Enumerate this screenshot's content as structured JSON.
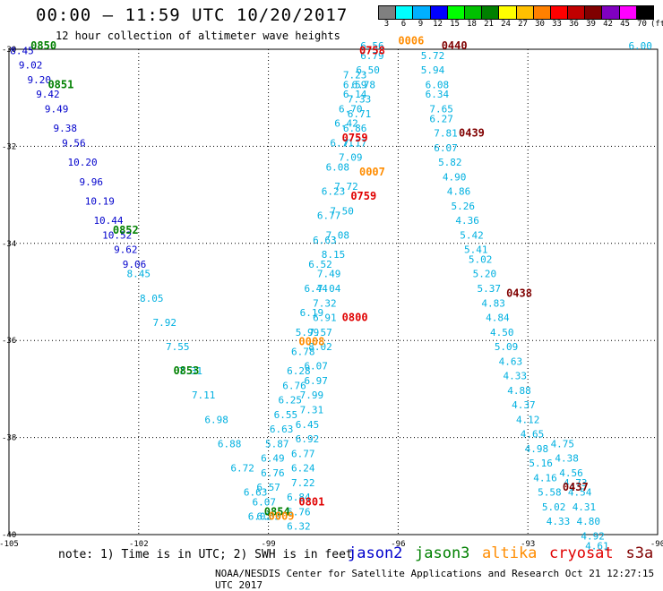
{
  "header": {
    "title": "00:00 – 11:59 UTC 10/20/2017",
    "subtitle": "12 hour collection of altimeter wave heights"
  },
  "colorbar": {
    "labels": [
      "3",
      "6",
      "9",
      "12",
      "15",
      "18",
      "21",
      "24",
      "27",
      "30",
      "33",
      "36",
      "39",
      "42",
      "45",
      "70",
      "(ft)"
    ],
    "colors": [
      "#808080",
      "#00ffff",
      "#00b0ff",
      "#0000ff",
      "#00ff00",
      "#00c000",
      "#008000",
      "#ffff00",
      "#ffc000",
      "#ff8000",
      "#ff0000",
      "#c00000",
      "#800000",
      "#8000c0",
      "#ff00ff",
      "#000000"
    ]
  },
  "footer": {
    "note": "note: 1) Time is in UTC; 2) SWH is in feet",
    "credit": "NOAA/NESDIS Center for Satellite Applications and Research    Oct 21 12:27:15 UTC 2017",
    "satellites": [
      {
        "name": "jason2",
        "color": "#0000cc"
      },
      {
        "name": "jason3",
        "color": "#008000"
      },
      {
        "name": "altika",
        "color": "#ff8c00"
      },
      {
        "name": "cryosat",
        "color": "#e00000"
      },
      {
        "name": "s3a",
        "color": "#800000"
      }
    ]
  },
  "chart_data": {
    "type": "scatter",
    "xlim": [
      -105,
      -90
    ],
    "ylim": [
      -40,
      -30
    ],
    "xticks": [
      "-105",
      "-102",
      "-99",
      "-96",
      "-93",
      "-90"
    ],
    "yticks": [
      "-30",
      "-32",
      "-34",
      "-36",
      "-38",
      "-40"
    ],
    "grid": true,
    "tracks": [
      {
        "sat": "jason2",
        "color": "#0000cc",
        "points": [
          {
            "x": -104.7,
            "y": -30.1,
            "v": "8.45"
          },
          {
            "x": -104.5,
            "y": -30.4,
            "v": "9.02"
          },
          {
            "x": -104.3,
            "y": -30.7,
            "v": "9.20"
          },
          {
            "x": -104.1,
            "y": -31.0,
            "v": "9.42"
          },
          {
            "x": -103.9,
            "y": -31.3,
            "v": "9.49"
          },
          {
            "x": -103.7,
            "y": -31.7,
            "v": "9.38"
          },
          {
            "x": -103.5,
            "y": -32.0,
            "v": "9.56"
          },
          {
            "x": -103.3,
            "y": -32.4,
            "v": "10.20"
          },
          {
            "x": -103.1,
            "y": -32.8,
            "v": "9.96"
          },
          {
            "x": -102.9,
            "y": -33.2,
            "v": "10.19"
          },
          {
            "x": -102.7,
            "y": -33.6,
            "v": "10.44"
          },
          {
            "x": -102.5,
            "y": -33.9,
            "v": "10.52"
          },
          {
            "x": -102.3,
            "y": -34.2,
            "v": "9.62"
          },
          {
            "x": -102.1,
            "y": -34.5,
            "v": "9.06"
          }
        ]
      },
      {
        "sat": "jason2",
        "color": "#00b0e0",
        "points": [
          {
            "x": -102.0,
            "y": -34.7,
            "v": "8.45"
          },
          {
            "x": -101.7,
            "y": -35.2,
            "v": "8.05"
          },
          {
            "x": -101.4,
            "y": -35.7,
            "v": "7.92"
          },
          {
            "x": -101.1,
            "y": -36.2,
            "v": "7.55"
          },
          {
            "x": -100.8,
            "y": -36.7,
            "v": "7.31"
          },
          {
            "x": -100.5,
            "y": -37.2,
            "v": "7.11"
          },
          {
            "x": -100.2,
            "y": -37.7,
            "v": "6.98"
          },
          {
            "x": -99.9,
            "y": -38.2,
            "v": "6.88"
          },
          {
            "x": -99.6,
            "y": -38.7,
            "v": "6.72"
          },
          {
            "x": -99.3,
            "y": -39.2,
            "v": "6.63"
          },
          {
            "x": -99.0,
            "y": -39.7,
            "v": "6.53"
          }
        ]
      },
      {
        "sat": "altika",
        "color": "#00b0e0",
        "points": [
          {
            "x": -97.0,
            "y": -30.6,
            "v": "7.23"
          },
          {
            "x": -97.0,
            "y": -30.8,
            "v": "6.59"
          },
          {
            "x": -97.0,
            "y": -31.0,
            "v": "6.14"
          },
          {
            "x": -97.1,
            "y": -31.3,
            "v": "6.70"
          },
          {
            "x": -97.2,
            "y": -31.6,
            "v": "6.42"
          },
          {
            "x": -97.3,
            "y": -32.0,
            "v": "6.71"
          },
          {
            "x": -97.4,
            "y": -32.5,
            "v": "6.08"
          },
          {
            "x": -97.5,
            "y": -33.0,
            "v": "6.23"
          },
          {
            "x": -97.6,
            "y": -33.5,
            "v": "6.77"
          },
          {
            "x": -97.7,
            "y": -34.0,
            "v": "6.63"
          },
          {
            "x": -97.8,
            "y": -34.5,
            "v": "6.52"
          },
          {
            "x": -97.9,
            "y": -35.0,
            "v": "6.44"
          },
          {
            "x": -98.0,
            "y": -35.5,
            "v": "6.19"
          },
          {
            "x": -98.1,
            "y": -35.9,
            "v": "5.99"
          },
          {
            "x": -98.2,
            "y": -36.3,
            "v": "6.78"
          },
          {
            "x": -98.3,
            "y": -36.7,
            "v": "6.28"
          },
          {
            "x": -98.4,
            "y": -37.0,
            "v": "6.76"
          },
          {
            "x": -98.5,
            "y": -37.3,
            "v": "6.25"
          },
          {
            "x": -98.6,
            "y": -37.6,
            "v": "6.55"
          },
          {
            "x": -98.7,
            "y": -37.9,
            "v": "6.63"
          },
          {
            "x": -98.8,
            "y": -38.2,
            "v": "5.87"
          },
          {
            "x": -98.9,
            "y": -38.5,
            "v": "6.49"
          },
          {
            "x": -98.9,
            "y": -38.8,
            "v": "6.76"
          },
          {
            "x": -99.0,
            "y": -39.1,
            "v": "6.57"
          },
          {
            "x": -99.1,
            "y": -39.4,
            "v": "6.07"
          },
          {
            "x": -99.2,
            "y": -39.7,
            "v": "6.02"
          }
        ]
      },
      {
        "sat": "altika",
        "color": "#00b0e0",
        "points": [
          {
            "x": -96.6,
            "y": -30.0,
            "v": "6.56"
          },
          {
            "x": -96.6,
            "y": -30.2,
            "v": "6.79"
          },
          {
            "x": -96.7,
            "y": -30.5,
            "v": "6.50"
          },
          {
            "x": -96.8,
            "y": -30.8,
            "v": "6.78"
          },
          {
            "x": -96.9,
            "y": -31.1,
            "v": "7.33"
          },
          {
            "x": -96.9,
            "y": -31.4,
            "v": "6.71"
          },
          {
            "x": -97.0,
            "y": -31.7,
            "v": "6.86"
          },
          {
            "x": -97.0,
            "y": -32.0,
            "v": "7.17"
          },
          {
            "x": -97.1,
            "y": -32.3,
            "v": "7.09"
          },
          {
            "x": -97.2,
            "y": -32.9,
            "v": "7.72"
          },
          {
            "x": -97.3,
            "y": -33.4,
            "v": "7.50"
          },
          {
            "x": -97.4,
            "y": -33.9,
            "v": "7.08"
          },
          {
            "x": -97.5,
            "y": -34.3,
            "v": "8.15"
          },
          {
            "x": -97.6,
            "y": -34.7,
            "v": "7.49"
          },
          {
            "x": -97.6,
            "y": -35.0,
            "v": "7.04"
          },
          {
            "x": -97.7,
            "y": -35.3,
            "v": "7.32"
          },
          {
            "x": -97.7,
            "y": -35.6,
            "v": "6.91"
          },
          {
            "x": -97.8,
            "y": -35.9,
            "v": "7.57"
          },
          {
            "x": -97.8,
            "y": -36.2,
            "v": "8.02"
          },
          {
            "x": -97.9,
            "y": -36.6,
            "v": "6.07"
          },
          {
            "x": -97.9,
            "y": -36.9,
            "v": "6.97"
          },
          {
            "x": -98.0,
            "y": -37.2,
            "v": "7.99"
          },
          {
            "x": -98.0,
            "y": -37.5,
            "v": "7.31"
          },
          {
            "x": -98.1,
            "y": -37.8,
            "v": "6.45"
          },
          {
            "x": -98.1,
            "y": -38.1,
            "v": "6.92"
          },
          {
            "x": -98.2,
            "y": -38.4,
            "v": "6.77"
          },
          {
            "x": -98.2,
            "y": -38.7,
            "v": "6.24"
          },
          {
            "x": -98.2,
            "y": -39.0,
            "v": "7.22"
          },
          {
            "x": -98.3,
            "y": -39.3,
            "v": "6.84"
          },
          {
            "x": -98.3,
            "y": -39.6,
            "v": "6.76"
          },
          {
            "x": -98.3,
            "y": -39.9,
            "v": "6.32"
          }
        ]
      },
      {
        "sat": "cryosat",
        "color": "#00b0e0",
        "points": [
          {
            "x": -95.2,
            "y": -30.2,
            "v": "5.72"
          },
          {
            "x": -95.2,
            "y": -30.5,
            "v": "5.94"
          },
          {
            "x": -95.1,
            "y": -30.8,
            "v": "6.08"
          },
          {
            "x": -95.1,
            "y": -31.0,
            "v": "6.34"
          },
          {
            "x": -95.0,
            "y": -31.3,
            "v": "7.65"
          },
          {
            "x": -95.0,
            "y": -31.5,
            "v": "6.27"
          },
          {
            "x": -94.9,
            "y": -31.8,
            "v": "7.81"
          },
          {
            "x": -94.9,
            "y": -32.1,
            "v": "6.07"
          },
          {
            "x": -94.8,
            "y": -32.4,
            "v": "5.82"
          },
          {
            "x": -94.7,
            "y": -32.7,
            "v": "4.90"
          },
          {
            "x": -94.6,
            "y": -33.0,
            "v": "4.86"
          },
          {
            "x": -94.5,
            "y": -33.3,
            "v": "5.26"
          },
          {
            "x": -94.4,
            "y": -33.6,
            "v": "4.36"
          },
          {
            "x": -94.3,
            "y": -33.9,
            "v": "5.42"
          },
          {
            "x": -94.2,
            "y": -34.2,
            "v": "5.41"
          },
          {
            "x": -94.1,
            "y": -34.4,
            "v": "5.02"
          },
          {
            "x": -94.0,
            "y": -34.7,
            "v": "5.20"
          },
          {
            "x": -93.9,
            "y": -35.0,
            "v": "5.37"
          },
          {
            "x": -93.8,
            "y": -35.3,
            "v": "4.83"
          },
          {
            "x": -93.7,
            "y": -35.6,
            "v": "4.84"
          },
          {
            "x": -93.6,
            "y": -35.9,
            "v": "4.50"
          },
          {
            "x": -93.5,
            "y": -36.2,
            "v": "5.09"
          },
          {
            "x": -93.4,
            "y": -36.5,
            "v": "4.63"
          },
          {
            "x": -93.3,
            "y": -36.8,
            "v": "4.33"
          },
          {
            "x": -93.2,
            "y": -37.1,
            "v": "4.88"
          },
          {
            "x": -93.1,
            "y": -37.4,
            "v": "4.37"
          },
          {
            "x": -93.0,
            "y": -37.7,
            "v": "4.12"
          },
          {
            "x": -92.9,
            "y": -38.0,
            "v": "4.65"
          },
          {
            "x": -92.8,
            "y": -38.3,
            "v": "4.98"
          },
          {
            "x": -92.7,
            "y": -38.6,
            "v": "5.16"
          },
          {
            "x": -92.6,
            "y": -38.9,
            "v": "4.16"
          },
          {
            "x": -92.5,
            "y": -39.2,
            "v": "5.58"
          },
          {
            "x": -92.4,
            "y": -39.5,
            "v": "5.02"
          },
          {
            "x": -92.3,
            "y": -39.8,
            "v": "4.33"
          }
        ]
      },
      {
        "sat": "s3a",
        "color": "#00b0e0",
        "points": [
          {
            "x": -92.2,
            "y": -38.2,
            "v": "4.75"
          },
          {
            "x": -92.1,
            "y": -38.5,
            "v": "4.38"
          },
          {
            "x": -92.0,
            "y": -38.8,
            "v": "4.56"
          },
          {
            "x": -91.9,
            "y": -39.0,
            "v": "4.73"
          },
          {
            "x": -91.8,
            "y": -39.2,
            "v": "4.54"
          },
          {
            "x": -91.7,
            "y": -39.5,
            "v": "4.31"
          },
          {
            "x": -91.6,
            "y": -39.8,
            "v": "4.80"
          },
          {
            "x": -91.5,
            "y": -40.1,
            "v": "4.92"
          },
          {
            "x": -91.4,
            "y": -40.3,
            "v": "4.61"
          }
        ]
      },
      {
        "sat": "s3a",
        "color": "#00b0e0",
        "points": [
          {
            "x": -90.4,
            "y": -30.0,
            "v": "6.00"
          }
        ]
      }
    ],
    "time_labels": [
      {
        "x": -104.2,
        "y": -30.0,
        "t": "0850",
        "color": "#008000"
      },
      {
        "x": -103.8,
        "y": -30.8,
        "t": "0851",
        "color": "#008000"
      },
      {
        "x": -102.3,
        "y": -33.8,
        "t": "0852",
        "color": "#008000"
      },
      {
        "x": -100.9,
        "y": -36.7,
        "t": "0853",
        "color": "#008000"
      },
      {
        "x": -98.8,
        "y": -39.6,
        "t": "0854",
        "color": "#008000"
      },
      {
        "x": -96.6,
        "y": -30.1,
        "t": "0758",
        "color": "#e00000"
      },
      {
        "x": -97.0,
        "y": -31.9,
        "t": "0759",
        "color": "#e00000"
      },
      {
        "x": -96.8,
        "y": -33.1,
        "t": "0759",
        "color": "#e00000"
      },
      {
        "x": -97.0,
        "y": -35.6,
        "t": "0800",
        "color": "#e00000"
      },
      {
        "x": -98.0,
        "y": -39.4,
        "t": "0801",
        "color": "#e00000"
      },
      {
        "x": -95.7,
        "y": -29.9,
        "t": "0006",
        "color": "#ff8c00"
      },
      {
        "x": -96.6,
        "y": -32.6,
        "t": "0007",
        "color": "#ff8c00"
      },
      {
        "x": -98.0,
        "y": -36.1,
        "t": "0008",
        "color": "#ff8c00"
      },
      {
        "x": -98.7,
        "y": -39.7,
        "t": "0009",
        "color": "#ff8c00"
      },
      {
        "x": -94.7,
        "y": -30.0,
        "t": "0440",
        "color": "#800000"
      },
      {
        "x": -94.3,
        "y": -31.8,
        "t": "0439",
        "color": "#800000"
      },
      {
        "x": -93.2,
        "y": -35.1,
        "t": "0438",
        "color": "#800000"
      },
      {
        "x": -91.9,
        "y": -39.1,
        "t": "0437",
        "color": "#800000"
      }
    ]
  }
}
